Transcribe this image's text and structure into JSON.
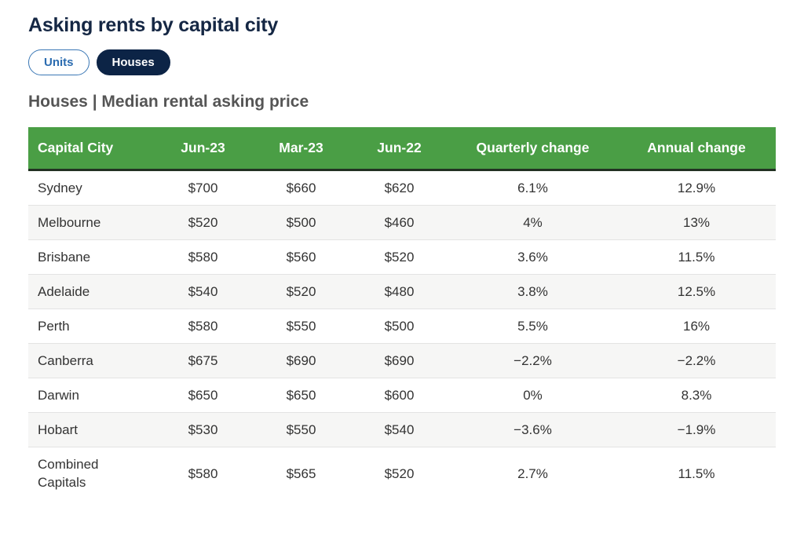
{
  "page": {
    "title": "Asking rents by capital city",
    "subtitle": "Houses | Median rental asking price"
  },
  "tabs": [
    {
      "label": "Units",
      "active": false
    },
    {
      "label": "Houses",
      "active": true
    }
  ],
  "colors": {
    "header_green": "#4a9e45",
    "header_bottom_border": "#223122",
    "title_navy": "#152744",
    "active_tab_bg": "#0c2446",
    "inactive_tab_blue": "#2b6cb0",
    "row_stripe": "#f6f6f5",
    "row_divider": "#e3e3e3",
    "cell_text": "#333333",
    "subtitle_gray": "#555555"
  },
  "chart_data": {
    "type": "table",
    "title": "Asking rents by capital city",
    "subtitle": "Houses | Median rental asking price",
    "columns": [
      "Capital City",
      "Jun-23",
      "Mar-23",
      "Jun-22",
      "Quarterly change",
      "Annual change"
    ],
    "rows": [
      [
        "Sydney",
        "$700",
        "$660",
        "$620",
        "6.1%",
        "12.9%"
      ],
      [
        "Melbourne",
        "$520",
        "$500",
        "$460",
        "4%",
        "13%"
      ],
      [
        "Brisbane",
        "$580",
        "$560",
        "$520",
        "3.6%",
        "11.5%"
      ],
      [
        "Adelaide",
        "$540",
        "$520",
        "$480",
        "3.8%",
        "12.5%"
      ],
      [
        "Perth",
        "$580",
        "$550",
        "$500",
        "5.5%",
        "16%"
      ],
      [
        "Canberra",
        "$675",
        "$690",
        "$690",
        "−2.2%",
        "−2.2%"
      ],
      [
        "Darwin",
        "$650",
        "$650",
        "$600",
        "0%",
        "8.3%"
      ],
      [
        "Hobart",
        "$530",
        "$550",
        "$540",
        "−3.6%",
        "−1.9%"
      ],
      [
        "Combined Capitals",
        "$580",
        "$565",
        "$520",
        "2.7%",
        "11.5%"
      ]
    ]
  }
}
